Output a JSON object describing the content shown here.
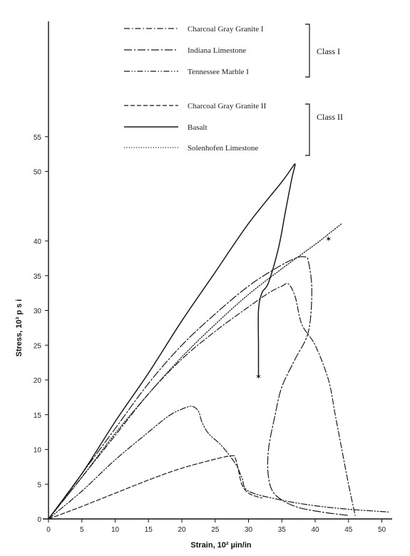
{
  "chart_data": {
    "type": "line",
    "title": "",
    "xlabel": "Strain, 10² µin/in",
    "ylabel": "Stress, 10³ p s i",
    "xlim": [
      0,
      52
    ],
    "ylim": [
      0,
      60
    ],
    "xticks": [
      "0",
      "5",
      "10",
      "15",
      "20",
      "25",
      "30",
      "35",
      "40",
      "45",
      "50"
    ],
    "yticks": [
      "0",
      "5",
      "10",
      "15",
      "20",
      "25",
      "30",
      "35",
      "40",
      "50",
      "55"
    ],
    "grid": false,
    "legend": {
      "placement": "top",
      "groups": [
        {
          "label": "Class I",
          "entries": [
            "Charcoal Gray Granite I",
            "Indiana Limestone",
            "Tennessee Marble I"
          ]
        },
        {
          "label": "Class II",
          "entries": [
            "Charcoal Gray Granite II",
            "Basalt",
            "Solenhofen Limestone"
          ]
        }
      ]
    },
    "series": [
      {
        "name": "Charcoal Gray Granite I",
        "style": "dash-dot",
        "x": [
          0,
          5,
          10,
          15,
          20,
          25,
          30,
          33,
          35,
          36,
          37,
          38,
          40,
          42,
          43,
          44,
          45,
          46
        ],
        "y": [
          0,
          6,
          12,
          18,
          23,
          27,
          30.5,
          32.5,
          33.5,
          33.8,
          32,
          28,
          25,
          20,
          15,
          10,
          5,
          0.5
        ]
      },
      {
        "name": "Indiana Limestone",
        "style": "long-dash-dot",
        "x": [
          0,
          5,
          10,
          15,
          20,
          25,
          30,
          34,
          37,
          38.5,
          39,
          39.5,
          39,
          37,
          35,
          34,
          33,
          33,
          34,
          37,
          41,
          45
        ],
        "y": [
          0,
          6.5,
          13,
          19.5,
          25,
          29.5,
          33.5,
          36,
          37.5,
          37.7,
          37,
          33,
          27,
          23,
          19,
          15,
          10,
          6,
          3.5,
          1.8,
          1,
          0.5
        ]
      },
      {
        "name": "Tennessee Marble I",
        "style": "dash-dot-dot",
        "x": [
          0,
          5,
          10,
          15,
          18,
          20,
          21.5,
          22.5,
          23,
          24,
          26,
          28,
          29,
          30,
          35,
          40,
          45,
          51
        ],
        "y": [
          0,
          4,
          8.5,
          12.5,
          14.8,
          15.8,
          16.2,
          15.5,
          14,
          12.3,
          10.5,
          8,
          6,
          4,
          2.7,
          1.9,
          1.4,
          1
        ]
      },
      {
        "name": "Charcoal Gray Granite II",
        "style": "dashed",
        "x": [
          0,
          5,
          10,
          15,
          20,
          25,
          27.5,
          28,
          28.5,
          29,
          30,
          32
        ],
        "y": [
          0,
          1.8,
          3.7,
          5.6,
          7.3,
          8.6,
          9.1,
          8.8,
          7,
          5,
          3.7,
          3
        ]
      },
      {
        "name": "Basalt",
        "style": "solid",
        "x": [
          0,
          5,
          10,
          15,
          20,
          25,
          30,
          35,
          36.5,
          37,
          36.5,
          35.5,
          34.5,
          33,
          32,
          31.5,
          31.5,
          31.5
        ],
        "y": [
          0,
          6.5,
          14,
          21,
          28.5,
          35.5,
          42.5,
          48.5,
          50.5,
          51,
          49,
          44,
          39,
          34,
          32.5,
          30,
          25,
          20.5
        ]
      },
      {
        "name": "Solenhofen Limestone",
        "style": "dotted",
        "x": [
          0,
          5,
          10,
          15,
          20,
          25,
          30,
          35,
          40,
          42,
          44
        ],
        "y": [
          0,
          6,
          12.3,
          18,
          23.3,
          28,
          32.3,
          36,
          39.5,
          41,
          42.5
        ]
      }
    ],
    "markers": [
      {
        "series": "Basalt",
        "x": 31.5,
        "y": 20.5,
        "symbol": "✶"
      },
      {
        "series": "Solenhofen Limestone",
        "x": 42,
        "y": 40.3,
        "symbol": "✶"
      }
    ]
  }
}
